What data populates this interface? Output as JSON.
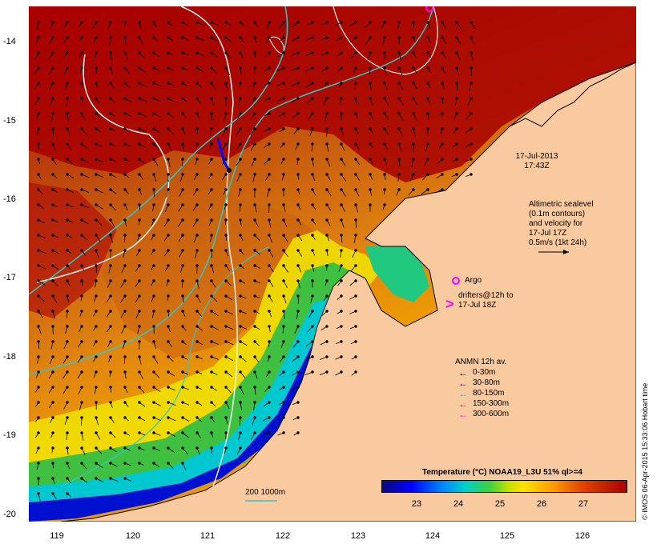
{
  "map": {
    "y_axis_labels": [
      "-14",
      "-15",
      "-16",
      "-17",
      "-18",
      "-19",
      "-20"
    ],
    "x_axis_labels": [
      "119",
      "120",
      "121",
      "122",
      "123",
      "124",
      "125",
      "126"
    ],
    "datetime_line1": "17-Jul-2013",
    "datetime_line2": "17:43Z",
    "altimetry_line1": "Altimetric sealevel",
    "altimetry_line2": "(0.1m contours)",
    "altimetry_line3": "and velocity for",
    "altimetry_line4": "17-Jul 17Z",
    "altimetry_line5": "0.5m/s (1kt 24h)",
    "argo_label": "Argo",
    "drifters_line1": "drifters@12h to",
    "drifters_line2": "17-Jul 18Z",
    "bathymetry_label": "200  1000m",
    "credit": "© IMOS 06-Apr-2015 15:33:06 Hobart time"
  },
  "anmn_legend": {
    "title": "ANMN 12h av.",
    "items": [
      {
        "label": "0-30m",
        "color": "#000000"
      },
      {
        "label": "30-80m",
        "color": "#0000ff"
      },
      {
        "label": "80-150m",
        "color": "#00c8c8"
      },
      {
        "label": "150-300m",
        "color": "#ff0000"
      },
      {
        "label": "300-600m",
        "color": "#ff00ff"
      }
    ]
  },
  "colorbar": {
    "title": "Temperature (°C) NOAA19_L3U 51% ql>=4",
    "ticks": [
      "23",
      "24",
      "25",
      "26",
      "27"
    ]
  },
  "colors": {
    "land": "#f9c9a0",
    "warm_water": "#a80000",
    "mid_water": "#d8700a",
    "cool_water": "#40d040",
    "cold_water": "#0000c0",
    "sealevel_contour": "#f0f0f0",
    "bathymetry_contour": "#30c8c8",
    "argo": "#ff00ff"
  }
}
